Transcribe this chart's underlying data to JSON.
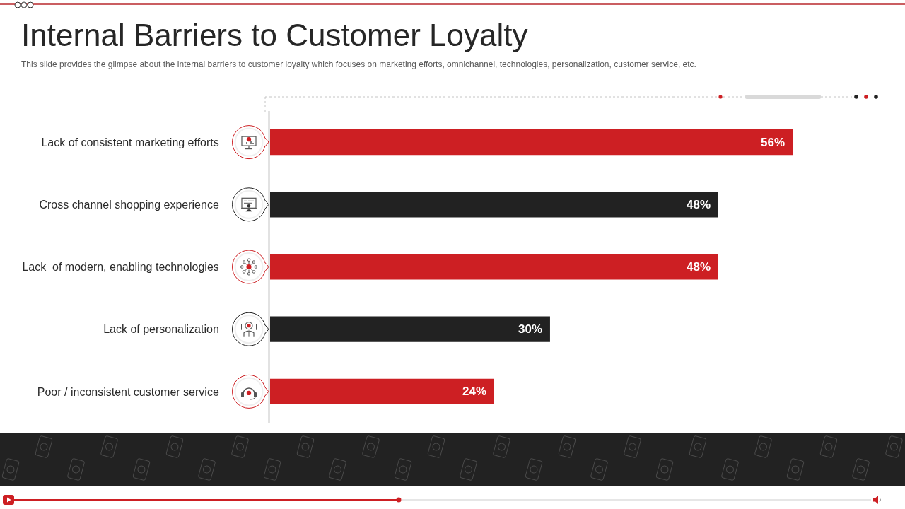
{
  "chart_data": {
    "type": "bar",
    "orientation": "horizontal",
    "title": "Internal Barriers to Customer Loyalty",
    "subtitle": "This slide provides the glimpse about the internal barriers to customer loyalty which focuses on marketing efforts, omnichannel, technologies, personalization, customer service, etc.",
    "categories": [
      "Lack of consistent marketing efforts",
      "Cross channel shopping experience",
      "Lack  of modern, enabling technologies",
      "Lack of personalization",
      "Poor / inconsistent customer service"
    ],
    "values": [
      56,
      48,
      48,
      30,
      24
    ],
    "colors": [
      "#cd1f23",
      "#222222",
      "#cd1f23",
      "#222222",
      "#cd1f23"
    ],
    "value_labels": [
      "56%",
      "48%",
      "48%",
      "30%",
      "24%"
    ],
    "tick_labels": "y"
  }
}
